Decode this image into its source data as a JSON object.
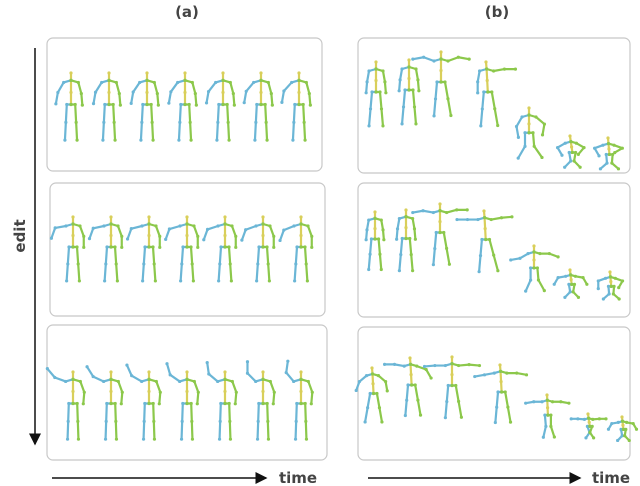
{
  "labels": {
    "a": "(a)",
    "b": "(b)"
  },
  "axes": {
    "vertical": "edit",
    "horizontal_a": "time",
    "horizontal_b": "time"
  }
}
